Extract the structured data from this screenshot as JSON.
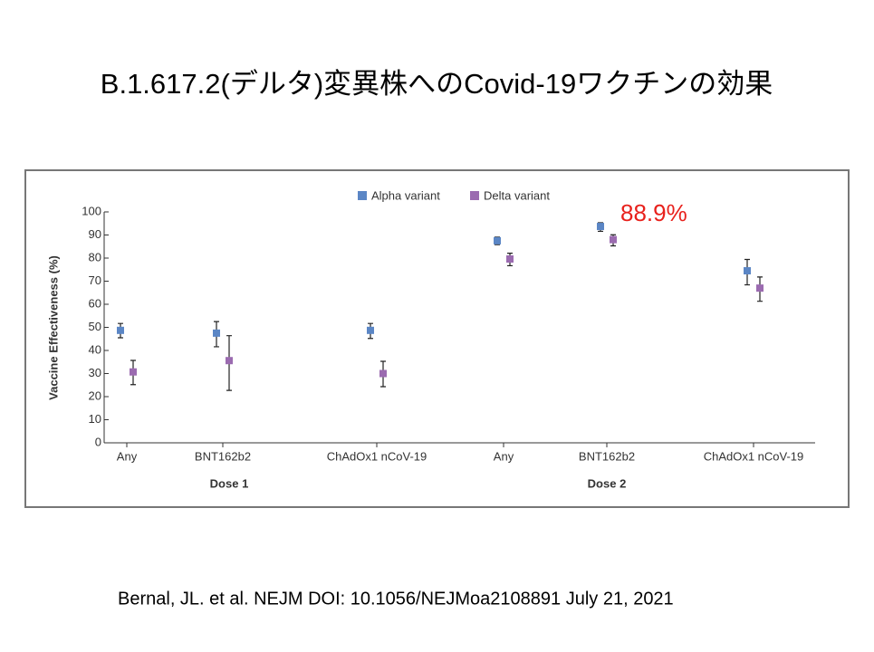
{
  "title": "B.1.617.2(デルタ)変異株へのCovid-19ワクチンの効果",
  "citation": "Bernal, JL. et al. NEJM DOI: 10.1056/NEJMoa2108891 July 21, 2021",
  "chart_data": {
    "type": "errorbar",
    "ylabel": "Vaccine Effectiveness (%)",
    "groups": [
      {
        "name": "Dose 1",
        "categories": [
          "Any",
          "BNT162b2",
          "ChAdOx1 nCoV-19"
        ]
      },
      {
        "name": "Dose 2",
        "categories": [
          "Any",
          "BNT162b2",
          "ChAdOx1 nCoV-19"
        ]
      }
    ],
    "series": [
      {
        "name": "Alpha variant",
        "color": "#5b86c5",
        "values": [
          48.7,
          47.5,
          48.7,
          87.5,
          93.7,
          74.5
        ],
        "lower": [
          45.5,
          41.6,
          45.2,
          85.8,
          91.6,
          68.4
        ],
        "upper": [
          51.7,
          52.5,
          51.7,
          89.1,
          95.3,
          79.4
        ]
      },
      {
        "name": "Delta variant",
        "color": "#9b6bb0",
        "values": [
          30.7,
          35.6,
          30.0,
          79.6,
          88.0,
          67.0
        ],
        "lower": [
          25.2,
          22.7,
          24.3,
          76.7,
          85.3,
          61.3
        ],
        "upper": [
          35.7,
          46.4,
          35.3,
          82.1,
          90.1,
          71.8
        ]
      }
    ],
    "annotation": "88.9%",
    "annotation_color": "#e8211c",
    "ylim": [
      0,
      100
    ],
    "yticks": [
      0,
      10,
      20,
      30,
      40,
      50,
      60,
      70,
      80,
      90,
      100
    ]
  }
}
